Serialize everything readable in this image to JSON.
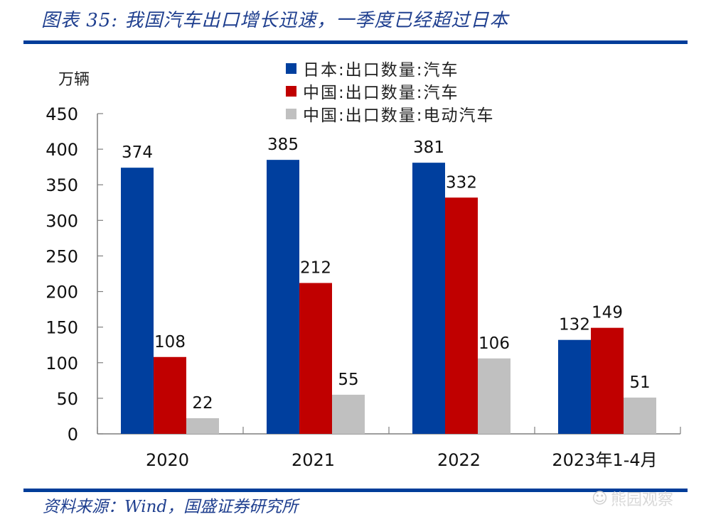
{
  "header": {
    "title": "图表 35:  我国汽车出口增长迅速，一季度已经超过日本"
  },
  "footer": {
    "source": "资料来源：Wind，国盛证券研究所",
    "watermark": "熊园观察",
    "watermark_icon": "wechat-icon"
  },
  "colors": {
    "japan": "#003f9e",
    "china": "#c00000",
    "china_ev": "#c0c0c0",
    "rule": "#003d99",
    "title": "#1f3f8f"
  },
  "chart_data": {
    "type": "bar",
    "title": "我国汽车出口增长迅速，一季度已经超过日本",
    "xlabel": "",
    "ylabel": "万辆",
    "ylim": [
      0,
      450
    ],
    "yticks": [
      0,
      50,
      100,
      150,
      200,
      250,
      300,
      350,
      400,
      450
    ],
    "grid": false,
    "legend_position": "top-center",
    "categories": [
      "2020",
      "2021",
      "2022",
      "2023年1-4月"
    ],
    "series": [
      {
        "name": "日本:出口数量:汽车",
        "color": "#003f9e",
        "values": [
          374,
          385,
          381,
          132
        ]
      },
      {
        "name": "中国:出口数量:汽车",
        "color": "#c00000",
        "values": [
          108,
          212,
          332,
          149
        ]
      },
      {
        "name": "中国:出口数量:电动汽车",
        "color": "#c0c0c0",
        "values": [
          22,
          55,
          106,
          51
        ]
      }
    ]
  }
}
